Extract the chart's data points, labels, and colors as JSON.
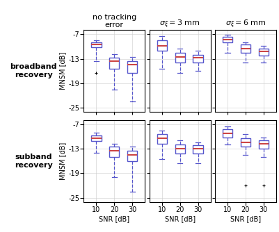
{
  "col_titles": [
    "no tracking\nerror",
    "$\\sigma_\\xi = 3$ mm",
    "$\\sigma_\\xi = 6$ mm"
  ],
  "row_titles": [
    "broadband\nrecovery",
    "subband\nrecovery"
  ],
  "snr_labels": [
    "10",
    "20",
    "30"
  ],
  "ylabel": "MNSM [dB]",
  "xlabel": "SNR [dB]",
  "ylim": [
    -26,
    -6
  ],
  "yticks": [
    -25,
    -19,
    -13,
    -7
  ],
  "box_color": "#5555cc",
  "median_color": "#cc4444",
  "flier_color": "#cc4444",
  "boxes": {
    "row0_col0": [
      {
        "med": -9.5,
        "q1": -10.2,
        "q3": -9.0,
        "whislo": -13.5,
        "whishi": -8.5,
        "fliers": [
          -16.5
        ]
      },
      {
        "med": -13.5,
        "q1": -15.5,
        "q3": -12.8,
        "whislo": -20.5,
        "whishi": -11.8,
        "fliers": []
      },
      {
        "med": -14.5,
        "q1": -16.5,
        "q3": -13.5,
        "whislo": -23.5,
        "whishi": -12.5,
        "fliers": []
      }
    ],
    "row0_col1": [
      {
        "med": -9.8,
        "q1": -11.0,
        "q3": -8.5,
        "whislo": -15.5,
        "whishi": -7.5,
        "fliers": []
      },
      {
        "med": -12.5,
        "q1": -14.0,
        "q3": -11.5,
        "whislo": -16.5,
        "whishi": -10.5,
        "fliers": []
      },
      {
        "med": -12.8,
        "q1": -14.0,
        "q3": -12.0,
        "whislo": -16.0,
        "whishi": -11.0,
        "fliers": []
      }
    ],
    "row0_col2": [
      {
        "med": -8.3,
        "q1": -9.0,
        "q3": -7.7,
        "whislo": -11.5,
        "whishi": -7.2,
        "fliers": []
      },
      {
        "med": -10.5,
        "q1": -11.5,
        "q3": -9.5,
        "whislo": -14.0,
        "whishi": -9.0,
        "fliers": []
      },
      {
        "med": -11.2,
        "q1": -12.2,
        "q3": -10.5,
        "whislo": -14.0,
        "whishi": -9.8,
        "fliers": []
      }
    ],
    "row1_col0": [
      {
        "med": -10.5,
        "q1": -11.2,
        "q3": -9.8,
        "whislo": -14.0,
        "whishi": -9.0,
        "fliers": []
      },
      {
        "med": -13.5,
        "q1": -15.0,
        "q3": -12.5,
        "whislo": -20.0,
        "whishi": -11.8,
        "fliers": []
      },
      {
        "med": -14.5,
        "q1": -16.0,
        "q3": -13.5,
        "whislo": -23.5,
        "whishi": -12.5,
        "fliers": []
      }
    ],
    "row1_col1": [
      {
        "med": -10.5,
        "q1": -11.8,
        "q3": -9.5,
        "whislo": -15.5,
        "whishi": -8.5,
        "fliers": []
      },
      {
        "med": -13.0,
        "q1": -14.2,
        "q3": -12.0,
        "whislo": -16.5,
        "whishi": -11.0,
        "fliers": []
      },
      {
        "med": -13.0,
        "q1": -14.2,
        "q3": -12.2,
        "whislo": -16.5,
        "whishi": -11.5,
        "fliers": []
      }
    ],
    "row1_col2": [
      {
        "med": -9.2,
        "q1": -10.2,
        "q3": -8.3,
        "whislo": -12.0,
        "whishi": -7.5,
        "fliers": []
      },
      {
        "med": -11.5,
        "q1": -12.5,
        "q3": -10.5,
        "whislo": -14.5,
        "whishi": -9.5,
        "fliers": [
          -22.0
        ]
      },
      {
        "med": -11.8,
        "q1": -13.0,
        "q3": -11.0,
        "whislo": -15.0,
        "whishi": -10.2,
        "fliers": [
          -22.0
        ]
      }
    ]
  }
}
